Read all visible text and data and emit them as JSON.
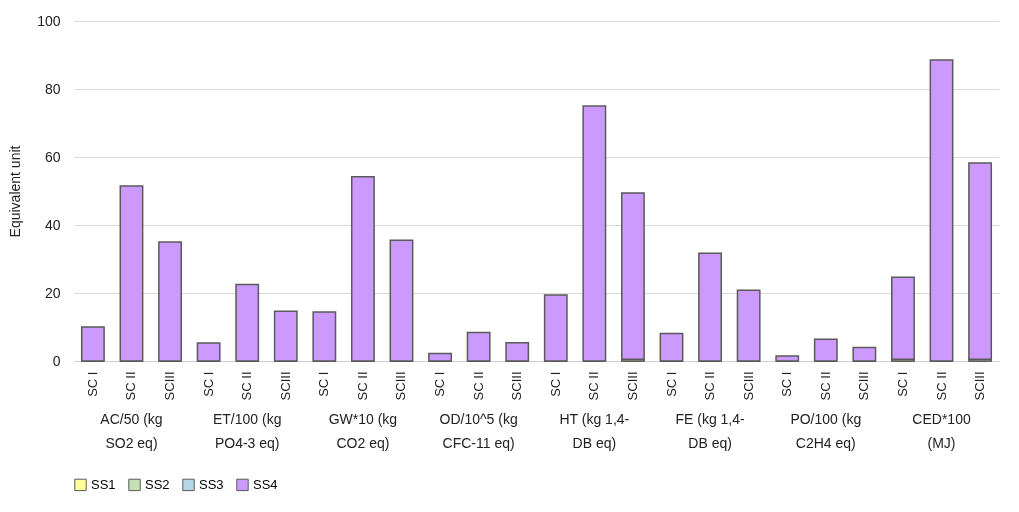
{
  "chart_data": {
    "type": "bar",
    "stacked": true,
    "ylabel": "Equivalent unit",
    "categories": [
      "SC I",
      "SC II",
      "SCIII",
      "SC I",
      "SC II",
      "SCIII",
      "SC I",
      "SC II",
      "SCIII",
      "SC I",
      "SC II",
      "SCIII",
      "SC I",
      "SC II",
      "SCIII",
      "SC I",
      "SC II",
      "SCIII",
      "SC I",
      "SC II",
      "SCIII",
      "SC I",
      "SC II",
      "SCIII"
    ],
    "series": [
      {
        "name": "SS1",
        "color": "#ffff99",
        "values": [
          0,
          0,
          0,
          0,
          0,
          0,
          0,
          0,
          0,
          0,
          0,
          0,
          0,
          0,
          0,
          0,
          0,
          0,
          0,
          0,
          0,
          0,
          0,
          0
        ]
      },
      {
        "name": "SS2",
        "color": "#c5e0b4",
        "values": [
          0,
          0,
          0,
          0,
          0,
          0,
          0,
          0,
          0,
          0,
          0,
          0,
          0,
          0,
          0.5,
          0,
          0,
          0,
          0,
          0,
          0,
          0.5,
          0,
          0.5
        ]
      },
      {
        "name": "SS3",
        "color": "#b4d8e7",
        "values": [
          0,
          0,
          0,
          0,
          0,
          0,
          0,
          0,
          0,
          0,
          0,
          0,
          0,
          0,
          0,
          0,
          0,
          0,
          0,
          0,
          0,
          0,
          0,
          0
        ]
      },
      {
        "name": "SS4",
        "color": "#cc99ff",
        "values": [
          10,
          51.5,
          35,
          5.3,
          22.5,
          14.6,
          14.4,
          54.2,
          35.5,
          2.2,
          8.4,
          5.4,
          19.4,
          75,
          48.9,
          8.1,
          31.7,
          20.8,
          1.5,
          6.4,
          4,
          24.1,
          88.5,
          57.7
        ]
      }
    ],
    "annotations": [
      "AC/50 (kg\nSO2 eq)",
      "ET/100 (kg\nPO4-3 eq)",
      "GW*10 (kg\nCO2 eq)",
      "OD/10^5 (kg\nCFC-11 eq)",
      "HT (kg 1,4-\nDB eq)",
      "FE (kg 1,4-\nDB eq)",
      "PO/100 (kg\nC2H4 eq)",
      "CED*100\n(MJ)"
    ],
    "ylim": [
      0,
      100
    ],
    "yticks": [
      0,
      20,
      40,
      60,
      80,
      100
    ],
    "grid": "y",
    "legend": "bottom"
  }
}
